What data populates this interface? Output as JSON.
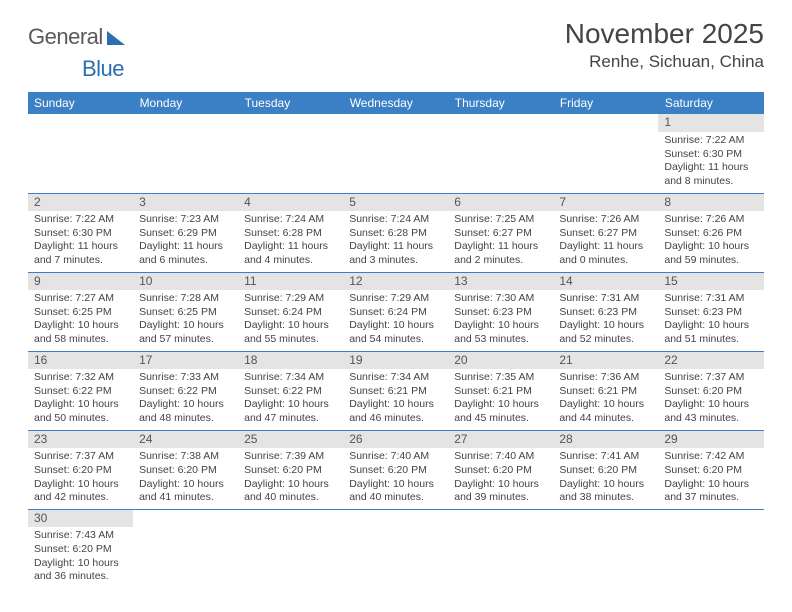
{
  "logo": {
    "part1": "General",
    "part2": "Blue"
  },
  "title": "November 2025",
  "location": "Renhe, Sichuan, China",
  "colors": {
    "header_bg": "#3b7fc4",
    "header_text": "#ffffff",
    "daynum_bg": "#e4e4e4",
    "border": "#3b7fc4",
    "logo_gray": "#5a5a5a",
    "logo_blue": "#2c6fb0"
  },
  "weekdays": [
    "Sunday",
    "Monday",
    "Tuesday",
    "Wednesday",
    "Thursday",
    "Friday",
    "Saturday"
  ],
  "weeks": [
    [
      null,
      null,
      null,
      null,
      null,
      null,
      {
        "n": "1",
        "sr": "Sunrise: 7:22 AM",
        "ss": "Sunset: 6:30 PM",
        "dl": "Daylight: 11 hours and 8 minutes."
      }
    ],
    [
      {
        "n": "2",
        "sr": "Sunrise: 7:22 AM",
        "ss": "Sunset: 6:30 PM",
        "dl": "Daylight: 11 hours and 7 minutes."
      },
      {
        "n": "3",
        "sr": "Sunrise: 7:23 AM",
        "ss": "Sunset: 6:29 PM",
        "dl": "Daylight: 11 hours and 6 minutes."
      },
      {
        "n": "4",
        "sr": "Sunrise: 7:24 AM",
        "ss": "Sunset: 6:28 PM",
        "dl": "Daylight: 11 hours and 4 minutes."
      },
      {
        "n": "5",
        "sr": "Sunrise: 7:24 AM",
        "ss": "Sunset: 6:28 PM",
        "dl": "Daylight: 11 hours and 3 minutes."
      },
      {
        "n": "6",
        "sr": "Sunrise: 7:25 AM",
        "ss": "Sunset: 6:27 PM",
        "dl": "Daylight: 11 hours and 2 minutes."
      },
      {
        "n": "7",
        "sr": "Sunrise: 7:26 AM",
        "ss": "Sunset: 6:27 PM",
        "dl": "Daylight: 11 hours and 0 minutes."
      },
      {
        "n": "8",
        "sr": "Sunrise: 7:26 AM",
        "ss": "Sunset: 6:26 PM",
        "dl": "Daylight: 10 hours and 59 minutes."
      }
    ],
    [
      {
        "n": "9",
        "sr": "Sunrise: 7:27 AM",
        "ss": "Sunset: 6:25 PM",
        "dl": "Daylight: 10 hours and 58 minutes."
      },
      {
        "n": "10",
        "sr": "Sunrise: 7:28 AM",
        "ss": "Sunset: 6:25 PM",
        "dl": "Daylight: 10 hours and 57 minutes."
      },
      {
        "n": "11",
        "sr": "Sunrise: 7:29 AM",
        "ss": "Sunset: 6:24 PM",
        "dl": "Daylight: 10 hours and 55 minutes."
      },
      {
        "n": "12",
        "sr": "Sunrise: 7:29 AM",
        "ss": "Sunset: 6:24 PM",
        "dl": "Daylight: 10 hours and 54 minutes."
      },
      {
        "n": "13",
        "sr": "Sunrise: 7:30 AM",
        "ss": "Sunset: 6:23 PM",
        "dl": "Daylight: 10 hours and 53 minutes."
      },
      {
        "n": "14",
        "sr": "Sunrise: 7:31 AM",
        "ss": "Sunset: 6:23 PM",
        "dl": "Daylight: 10 hours and 52 minutes."
      },
      {
        "n": "15",
        "sr": "Sunrise: 7:31 AM",
        "ss": "Sunset: 6:23 PM",
        "dl": "Daylight: 10 hours and 51 minutes."
      }
    ],
    [
      {
        "n": "16",
        "sr": "Sunrise: 7:32 AM",
        "ss": "Sunset: 6:22 PM",
        "dl": "Daylight: 10 hours and 50 minutes."
      },
      {
        "n": "17",
        "sr": "Sunrise: 7:33 AM",
        "ss": "Sunset: 6:22 PM",
        "dl": "Daylight: 10 hours and 48 minutes."
      },
      {
        "n": "18",
        "sr": "Sunrise: 7:34 AM",
        "ss": "Sunset: 6:22 PM",
        "dl": "Daylight: 10 hours and 47 minutes."
      },
      {
        "n": "19",
        "sr": "Sunrise: 7:34 AM",
        "ss": "Sunset: 6:21 PM",
        "dl": "Daylight: 10 hours and 46 minutes."
      },
      {
        "n": "20",
        "sr": "Sunrise: 7:35 AM",
        "ss": "Sunset: 6:21 PM",
        "dl": "Daylight: 10 hours and 45 minutes."
      },
      {
        "n": "21",
        "sr": "Sunrise: 7:36 AM",
        "ss": "Sunset: 6:21 PM",
        "dl": "Daylight: 10 hours and 44 minutes."
      },
      {
        "n": "22",
        "sr": "Sunrise: 7:37 AM",
        "ss": "Sunset: 6:20 PM",
        "dl": "Daylight: 10 hours and 43 minutes."
      }
    ],
    [
      {
        "n": "23",
        "sr": "Sunrise: 7:37 AM",
        "ss": "Sunset: 6:20 PM",
        "dl": "Daylight: 10 hours and 42 minutes."
      },
      {
        "n": "24",
        "sr": "Sunrise: 7:38 AM",
        "ss": "Sunset: 6:20 PM",
        "dl": "Daylight: 10 hours and 41 minutes."
      },
      {
        "n": "25",
        "sr": "Sunrise: 7:39 AM",
        "ss": "Sunset: 6:20 PM",
        "dl": "Daylight: 10 hours and 40 minutes."
      },
      {
        "n": "26",
        "sr": "Sunrise: 7:40 AM",
        "ss": "Sunset: 6:20 PM",
        "dl": "Daylight: 10 hours and 40 minutes."
      },
      {
        "n": "27",
        "sr": "Sunrise: 7:40 AM",
        "ss": "Sunset: 6:20 PM",
        "dl": "Daylight: 10 hours and 39 minutes."
      },
      {
        "n": "28",
        "sr": "Sunrise: 7:41 AM",
        "ss": "Sunset: 6:20 PM",
        "dl": "Daylight: 10 hours and 38 minutes."
      },
      {
        "n": "29",
        "sr": "Sunrise: 7:42 AM",
        "ss": "Sunset: 6:20 PM",
        "dl": "Daylight: 10 hours and 37 minutes."
      }
    ],
    [
      {
        "n": "30",
        "sr": "Sunrise: 7:43 AM",
        "ss": "Sunset: 6:20 PM",
        "dl": "Daylight: 10 hours and 36 minutes."
      },
      null,
      null,
      null,
      null,
      null,
      null
    ]
  ]
}
